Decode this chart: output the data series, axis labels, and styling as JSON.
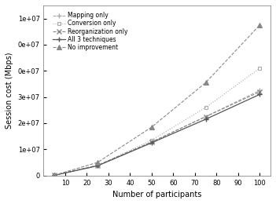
{
  "x": [
    5,
    25,
    50,
    75,
    100
  ],
  "series_order": [
    "Mapping only",
    "Conversion only",
    "Reorganization only",
    "All 3 techniques",
    "No improvement"
  ],
  "series": {
    "Mapping only": {
      "y": [
        80000,
        3800000,
        12800000,
        22500000,
        32500000
      ],
      "marker": "+",
      "linestyle": "--",
      "color": "#aaaaaa",
      "ms": 5,
      "lw": 0.8,
      "mfc": "none",
      "mew": 1.0
    },
    "Conversion only": {
      "y": [
        80000,
        3800000,
        13500000,
        26000000,
        41000000
      ],
      "marker": "s",
      "linestyle": ":",
      "color": "#aaaaaa",
      "ms": 3.5,
      "lw": 0.8,
      "mfc": "none",
      "mew": 0.8
    },
    "Reorganization only": {
      "y": [
        80000,
        3900000,
        12800000,
        22500000,
        32000000
      ],
      "marker": "x",
      "linestyle": "--",
      "color": "#888888",
      "ms": 5,
      "lw": 0.8,
      "mfc": "none",
      "mew": 1.0
    },
    "All 3 techniques": {
      "y": [
        80000,
        3700000,
        12500000,
        21500000,
        31000000
      ],
      "marker": "+",
      "linestyle": "-",
      "color": "#555555",
      "ms": 5,
      "lw": 0.9,
      "mfc": "none",
      "mew": 1.0
    },
    "No improvement": {
      "y": [
        120000,
        5000000,
        18500000,
        35500000,
        57500000
      ],
      "marker": "^",
      "linestyle": "--",
      "color": "#888888",
      "ms": 4.5,
      "lw": 0.8,
      "mfc": "#888888",
      "mew": 0.8
    }
  },
  "xlabel": "Number of participants",
  "ylabel": "Session cost (Mbps)",
  "xlim": [
    0,
    105
  ],
  "ylim": [
    0,
    65000000.0
  ],
  "yticks": [
    0,
    10000000.0,
    20000000.0,
    30000000.0,
    40000000.0,
    50000000.0,
    60000000.0
  ],
  "xticks": [
    10,
    20,
    30,
    40,
    50,
    60,
    70,
    80,
    90,
    100
  ],
  "background_color": "#ffffff",
  "legend_fontsize": 5.5,
  "axis_fontsize": 7,
  "tick_fontsize": 6
}
